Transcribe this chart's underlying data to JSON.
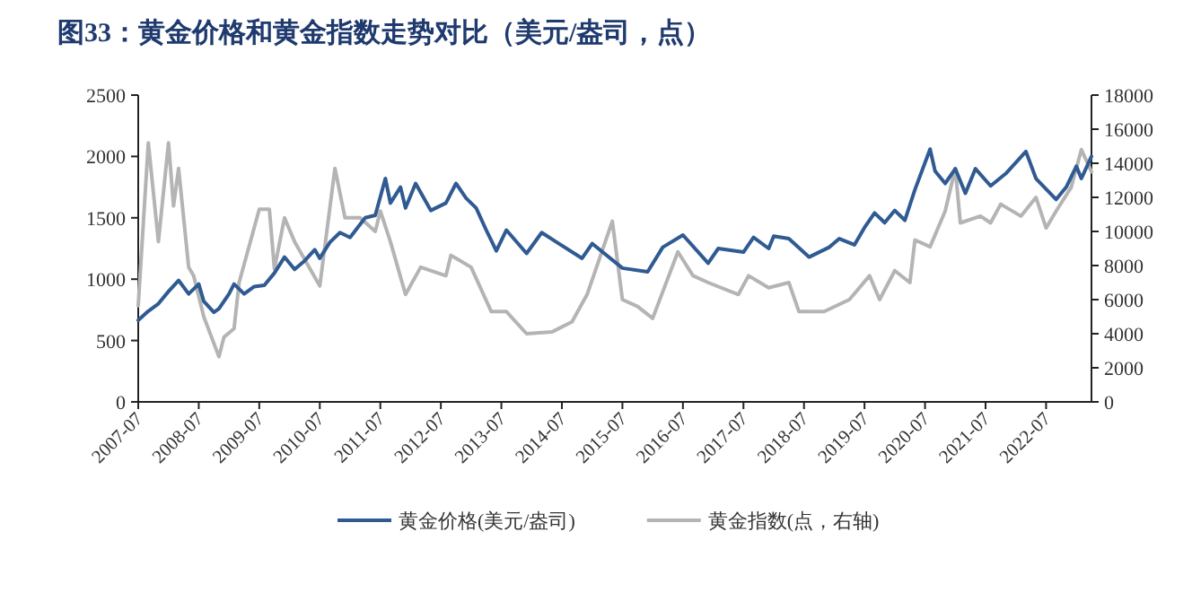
{
  "chart_data": {
    "type": "line",
    "title": "图33：黄金价格和黄金指数走势对比（美元/盎司，点）",
    "xlim": [
      "2007-07",
      "2023-04"
    ],
    "xticks": [
      "2007-07",
      "2008-07",
      "2009-07",
      "2010-07",
      "2011-07",
      "2012-07",
      "2013-07",
      "2014-07",
      "2015-07",
      "2016-07",
      "2017-07",
      "2018-07",
      "2019-07",
      "2020-07",
      "2021-07",
      "2022-07"
    ],
    "ylim": [
      0,
      2500
    ],
    "yticks": [
      0,
      500,
      1000,
      1500,
      2000,
      2500
    ],
    "y2lim": [
      0,
      18000
    ],
    "y2ticks": [
      0,
      2000,
      4000,
      6000,
      8000,
      10000,
      12000,
      14000,
      16000,
      18000
    ],
    "legend": "bottom",
    "grid": false,
    "series": [
      {
        "name": "黄金价格(美元/盎司)",
        "color": "#2f5a92",
        "x": [
          "2007-07",
          "2007-09",
          "2007-11",
          "2008-01",
          "2008-03",
          "2008-05",
          "2008-07",
          "2008-08",
          "2008-10",
          "2008-11",
          "2009-01",
          "2009-02",
          "2009-04",
          "2009-06",
          "2009-08",
          "2009-10",
          "2009-12",
          "2010-02",
          "2010-04",
          "2010-06",
          "2010-07",
          "2010-09",
          "2010-11",
          "2011-01",
          "2011-04",
          "2011-06",
          "2011-08",
          "2011-09",
          "2011-11",
          "2011-12",
          "2012-02",
          "2012-05",
          "2012-08",
          "2012-10",
          "2012-12",
          "2013-02",
          "2013-04",
          "2013-06",
          "2013-08",
          "2013-12",
          "2014-03",
          "2014-06",
          "2014-11",
          "2015-01",
          "2015-07",
          "2015-12",
          "2016-03",
          "2016-07",
          "2016-12",
          "2017-02",
          "2017-07",
          "2017-09",
          "2017-12",
          "2018-01",
          "2018-04",
          "2018-08",
          "2018-12",
          "2019-02",
          "2019-05",
          "2019-07",
          "2019-09",
          "2019-11",
          "2020-01",
          "2020-03",
          "2020-05",
          "2020-08",
          "2020-09",
          "2020-11",
          "2021-01",
          "2021-03",
          "2021-05",
          "2021-08",
          "2021-11",
          "2022-03",
          "2022-05",
          "2022-09",
          "2022-11",
          "2023-01",
          "2023-02",
          "2023-04"
        ],
        "values": [
          665,
          740,
          800,
          900,
          990,
          880,
          960,
          820,
          730,
          760,
          880,
          960,
          880,
          940,
          950,
          1050,
          1180,
          1080,
          1150,
          1240,
          1170,
          1300,
          1380,
          1340,
          1500,
          1520,
          1820,
          1620,
          1750,
          1580,
          1780,
          1560,
          1620,
          1780,
          1660,
          1580,
          1400,
          1230,
          1400,
          1210,
          1380,
          1300,
          1170,
          1290,
          1090,
          1060,
          1260,
          1360,
          1130,
          1250,
          1220,
          1340,
          1250,
          1350,
          1330,
          1180,
          1260,
          1330,
          1280,
          1420,
          1540,
          1460,
          1560,
          1480,
          1730,
          2060,
          1880,
          1780,
          1900,
          1700,
          1900,
          1760,
          1860,
          2040,
          1820,
          1650,
          1750,
          1920,
          1820,
          2000
        ]
      },
      {
        "name": "黄金指数(点，右轴)",
        "color": "#b4b4b4",
        "axis": "y2",
        "x": [
          "2007-07",
          "2007-09",
          "2007-11",
          "2008-01",
          "2008-02",
          "2008-03",
          "2008-05",
          "2008-06",
          "2008-08",
          "2008-11",
          "2008-12",
          "2009-02",
          "2009-03",
          "2009-07",
          "2009-09",
          "2009-10",
          "2009-12",
          "2010-02",
          "2010-07",
          "2010-10",
          "2010-12",
          "2011-03",
          "2011-06",
          "2011-07",
          "2011-09",
          "2011-12",
          "2012-03",
          "2012-08",
          "2012-09",
          "2013-01",
          "2013-05",
          "2013-08",
          "2013-12",
          "2014-05",
          "2014-09",
          "2014-12",
          "2015-05",
          "2015-07",
          "2015-10",
          "2016-01",
          "2016-06",
          "2016-09",
          "2016-12",
          "2017-06",
          "2017-08",
          "2017-12",
          "2018-04",
          "2018-06",
          "2018-11",
          "2019-04",
          "2019-08",
          "2019-10",
          "2020-01",
          "2020-04",
          "2020-05",
          "2020-08",
          "2020-11",
          "2021-01",
          "2021-02",
          "2021-06",
          "2021-08",
          "2021-10",
          "2022-02",
          "2022-05",
          "2022-07",
          "2022-09",
          "2022-12",
          "2023-02",
          "2023-04"
        ],
        "values": [
          5650,
          15200,
          9400,
          15200,
          11500,
          13700,
          7900,
          7400,
          5000,
          2650,
          3800,
          4300,
          7000,
          11300,
          11300,
          7800,
          10800,
          9400,
          6800,
          13700,
          10800,
          10800,
          10000,
          11200,
          9400,
          6300,
          7900,
          7400,
          8600,
          7900,
          5300,
          5300,
          4000,
          4100,
          4700,
          6300,
          10600,
          6000,
          5600,
          4900,
          8800,
          7400,
          7000,
          6300,
          7400,
          6700,
          7000,
          5300,
          5300,
          6000,
          7400,
          6000,
          7700,
          7000,
          9500,
          9100,
          11200,
          13700,
          10500,
          10900,
          10500,
          11600,
          10900,
          12000,
          10200,
          11200,
          12600,
          14800,
          13500
        ]
      }
    ]
  }
}
